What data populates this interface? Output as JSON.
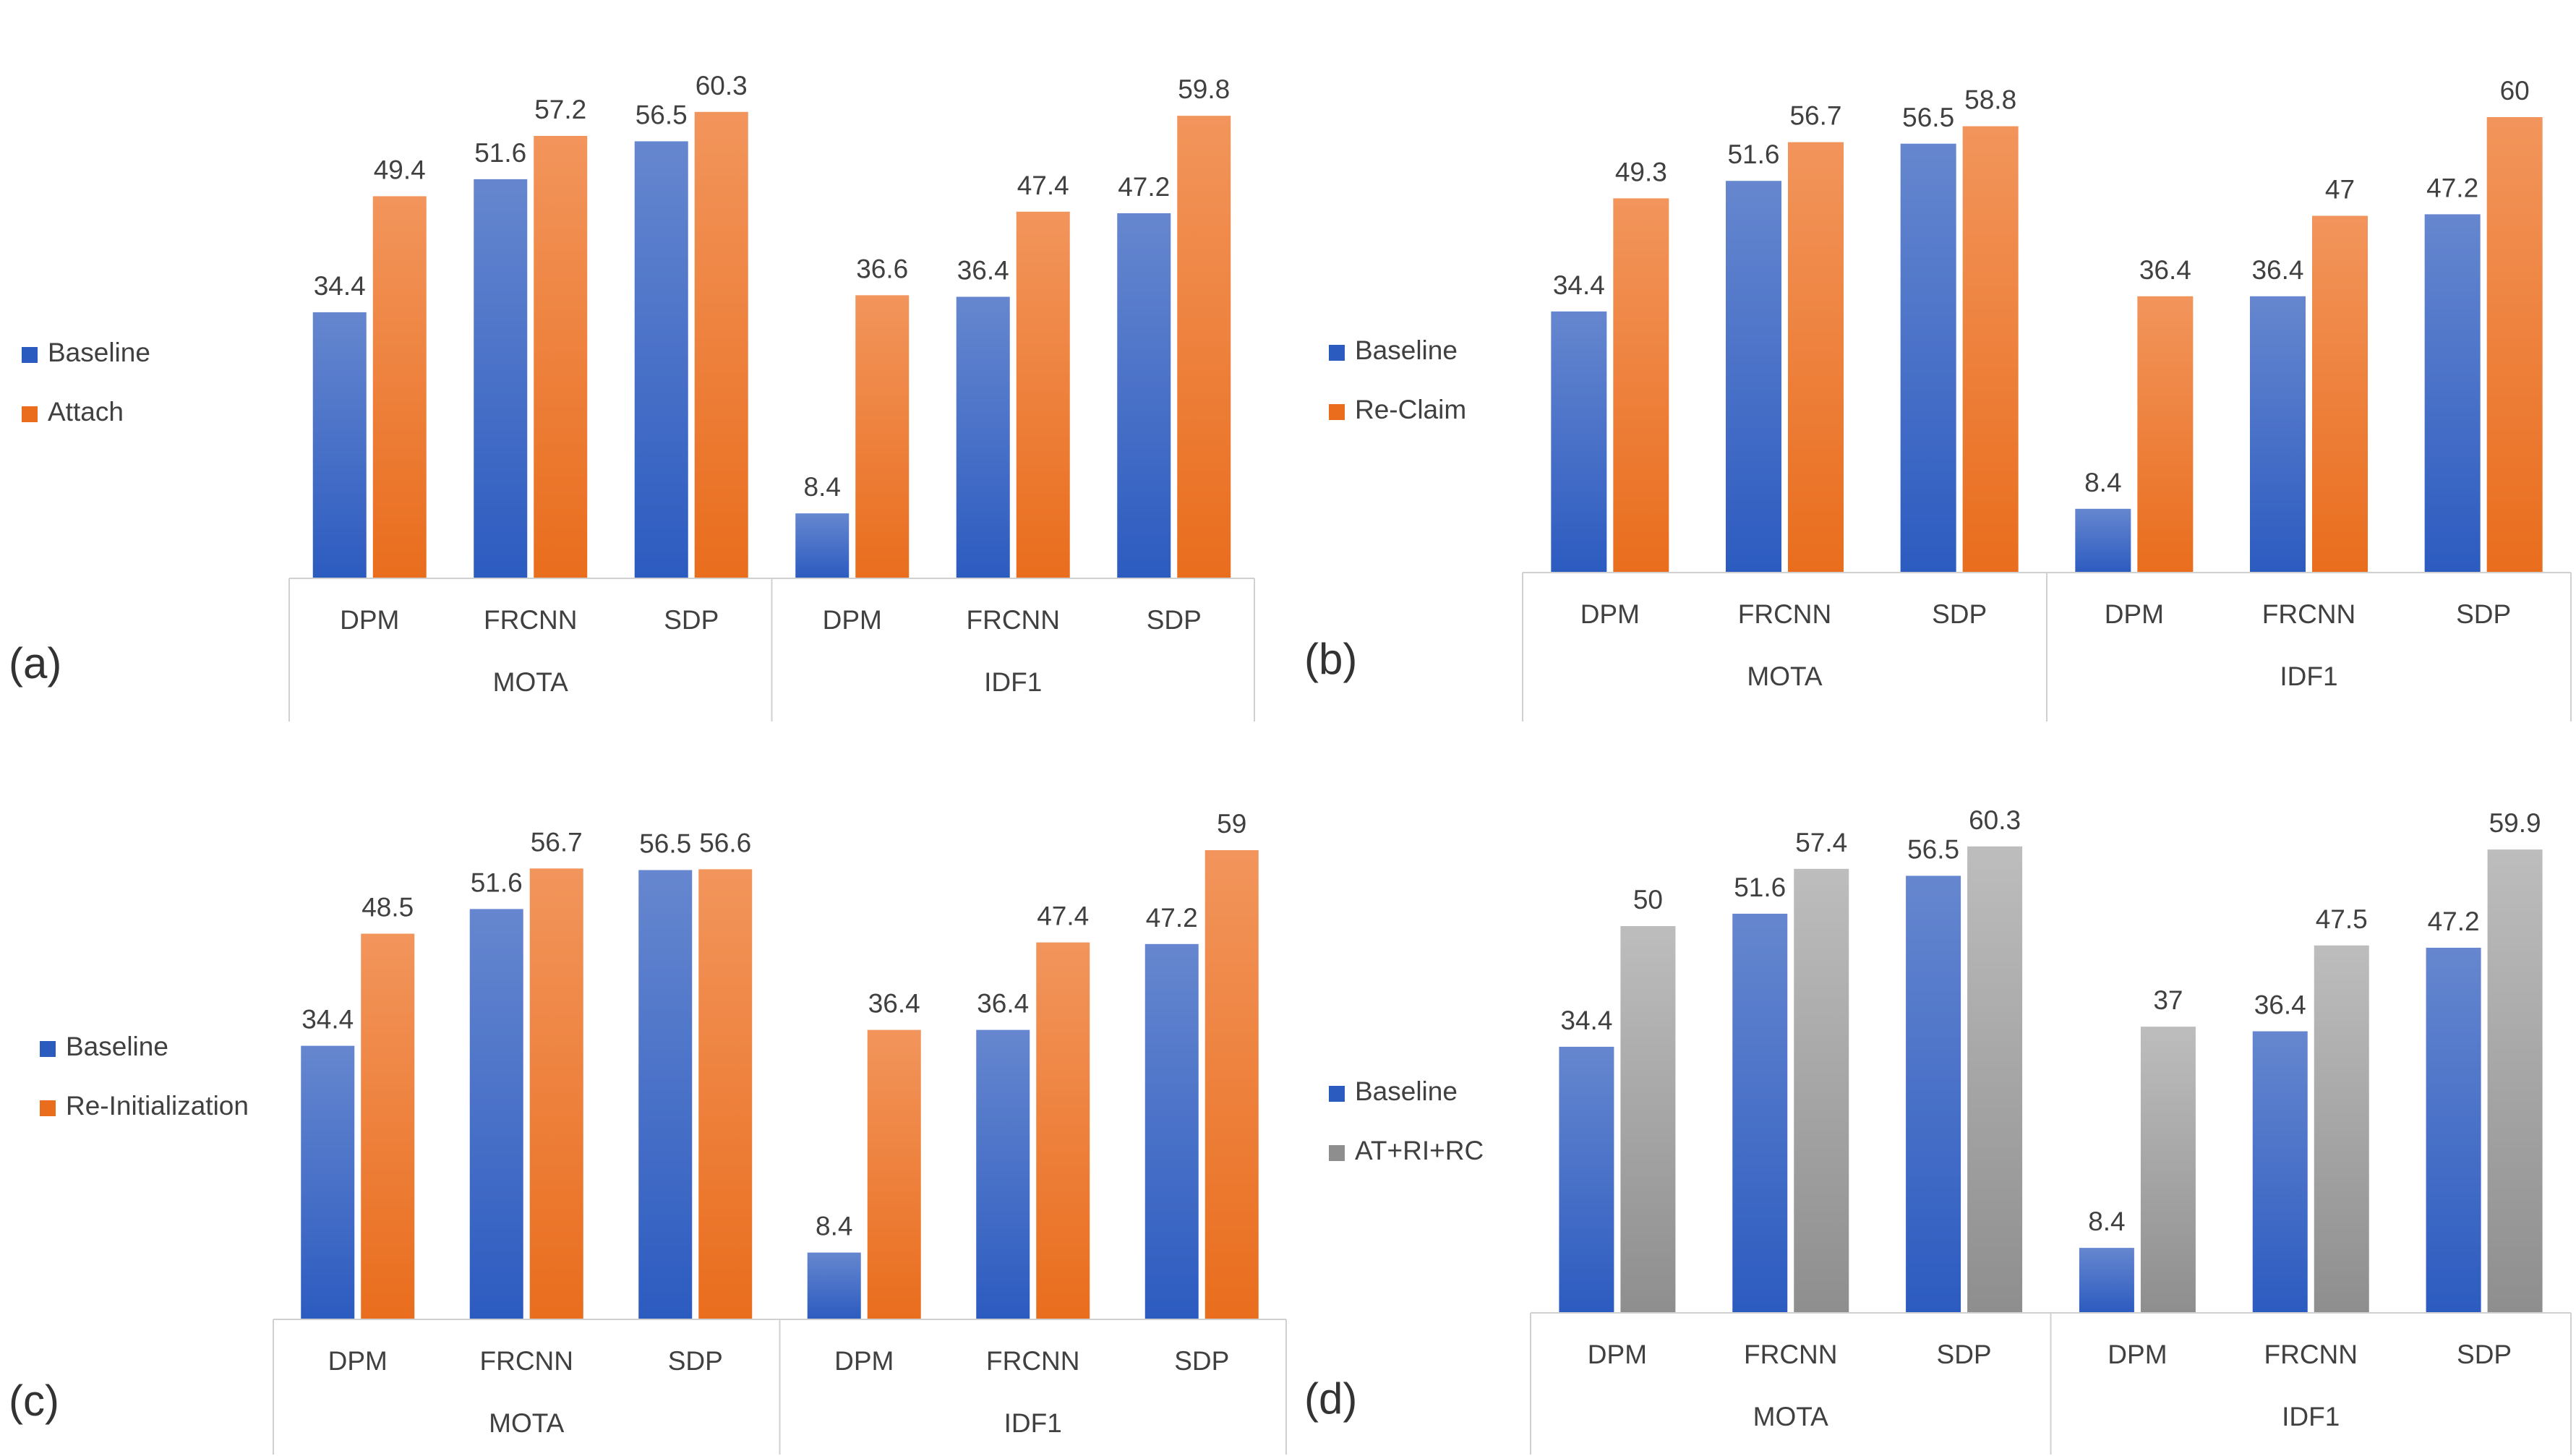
{
  "colors": {
    "baseline_top": "#6687cf",
    "baseline_bottom": "#2c5bc0",
    "orange_top": "#f2955c",
    "orange_bottom": "#e96d1d",
    "gray_top": "#bdbdbd",
    "gray_bottom": "#8e8e8e",
    "axis": "#d0d0d0",
    "text": "#404040"
  },
  "chart_data": [
    {
      "type": "bar",
      "panel_label": "(a)",
      "categories": [
        "DPM",
        "FRCNN",
        "SDP",
        "DPM",
        "FRCNN",
        "SDP"
      ],
      "groups": [
        "MOTA",
        "IDF1"
      ],
      "series": [
        {
          "name": "Baseline",
          "style": "blue",
          "values": [
            34.4,
            51.6,
            56.5,
            8.4,
            36.4,
            47.2
          ]
        },
        {
          "name": "Attach",
          "style": "orange",
          "values": [
            49.4,
            57.2,
            60.3,
            36.6,
            47.4,
            59.8
          ]
        }
      ],
      "ylim": [
        0,
        62
      ]
    },
    {
      "type": "bar",
      "panel_label": "(b)",
      "categories": [
        "DPM",
        "FRCNN",
        "SDP",
        "DPM",
        "FRCNN",
        "SDP"
      ],
      "groups": [
        "MOTA",
        "IDF1"
      ],
      "series": [
        {
          "name": "Baseline",
          "style": "blue",
          "values": [
            34.4,
            51.6,
            56.5,
            8.4,
            36.4,
            47.2
          ]
        },
        {
          "name": "Re-Claim",
          "style": "orange",
          "values": [
            49.3,
            56.7,
            58.8,
            36.4,
            47,
            60
          ]
        }
      ],
      "ylim": [
        0,
        62
      ]
    },
    {
      "type": "bar",
      "panel_label": "(c)",
      "categories": [
        "DPM",
        "FRCNN",
        "SDP",
        "DPM",
        "FRCNN",
        "SDP"
      ],
      "groups": [
        "MOTA",
        "IDF1"
      ],
      "series": [
        {
          "name": "Baseline",
          "style": "blue",
          "values": [
            34.4,
            51.6,
            56.5,
            8.4,
            36.4,
            47.2
          ]
        },
        {
          "name": "Re-Initialization",
          "style": "orange",
          "values": [
            48.5,
            56.7,
            56.6,
            36.4,
            47.4,
            59
          ]
        }
      ],
      "ylim": [
        0,
        62
      ]
    },
    {
      "type": "bar",
      "panel_label": "(d)",
      "categories": [
        "DPM",
        "FRCNN",
        "SDP",
        "DPM",
        "FRCNN",
        "SDP"
      ],
      "groups": [
        "MOTA",
        "IDF1"
      ],
      "series": [
        {
          "name": "Baseline",
          "style": "blue",
          "values": [
            34.4,
            51.6,
            56.5,
            8.4,
            36.4,
            47.2
          ]
        },
        {
          "name": "AT+RI+RC",
          "style": "gray",
          "values": [
            50,
            57.4,
            60.3,
            37,
            47.5,
            59.9
          ]
        }
      ],
      "ylim": [
        0,
        62
      ]
    }
  ]
}
